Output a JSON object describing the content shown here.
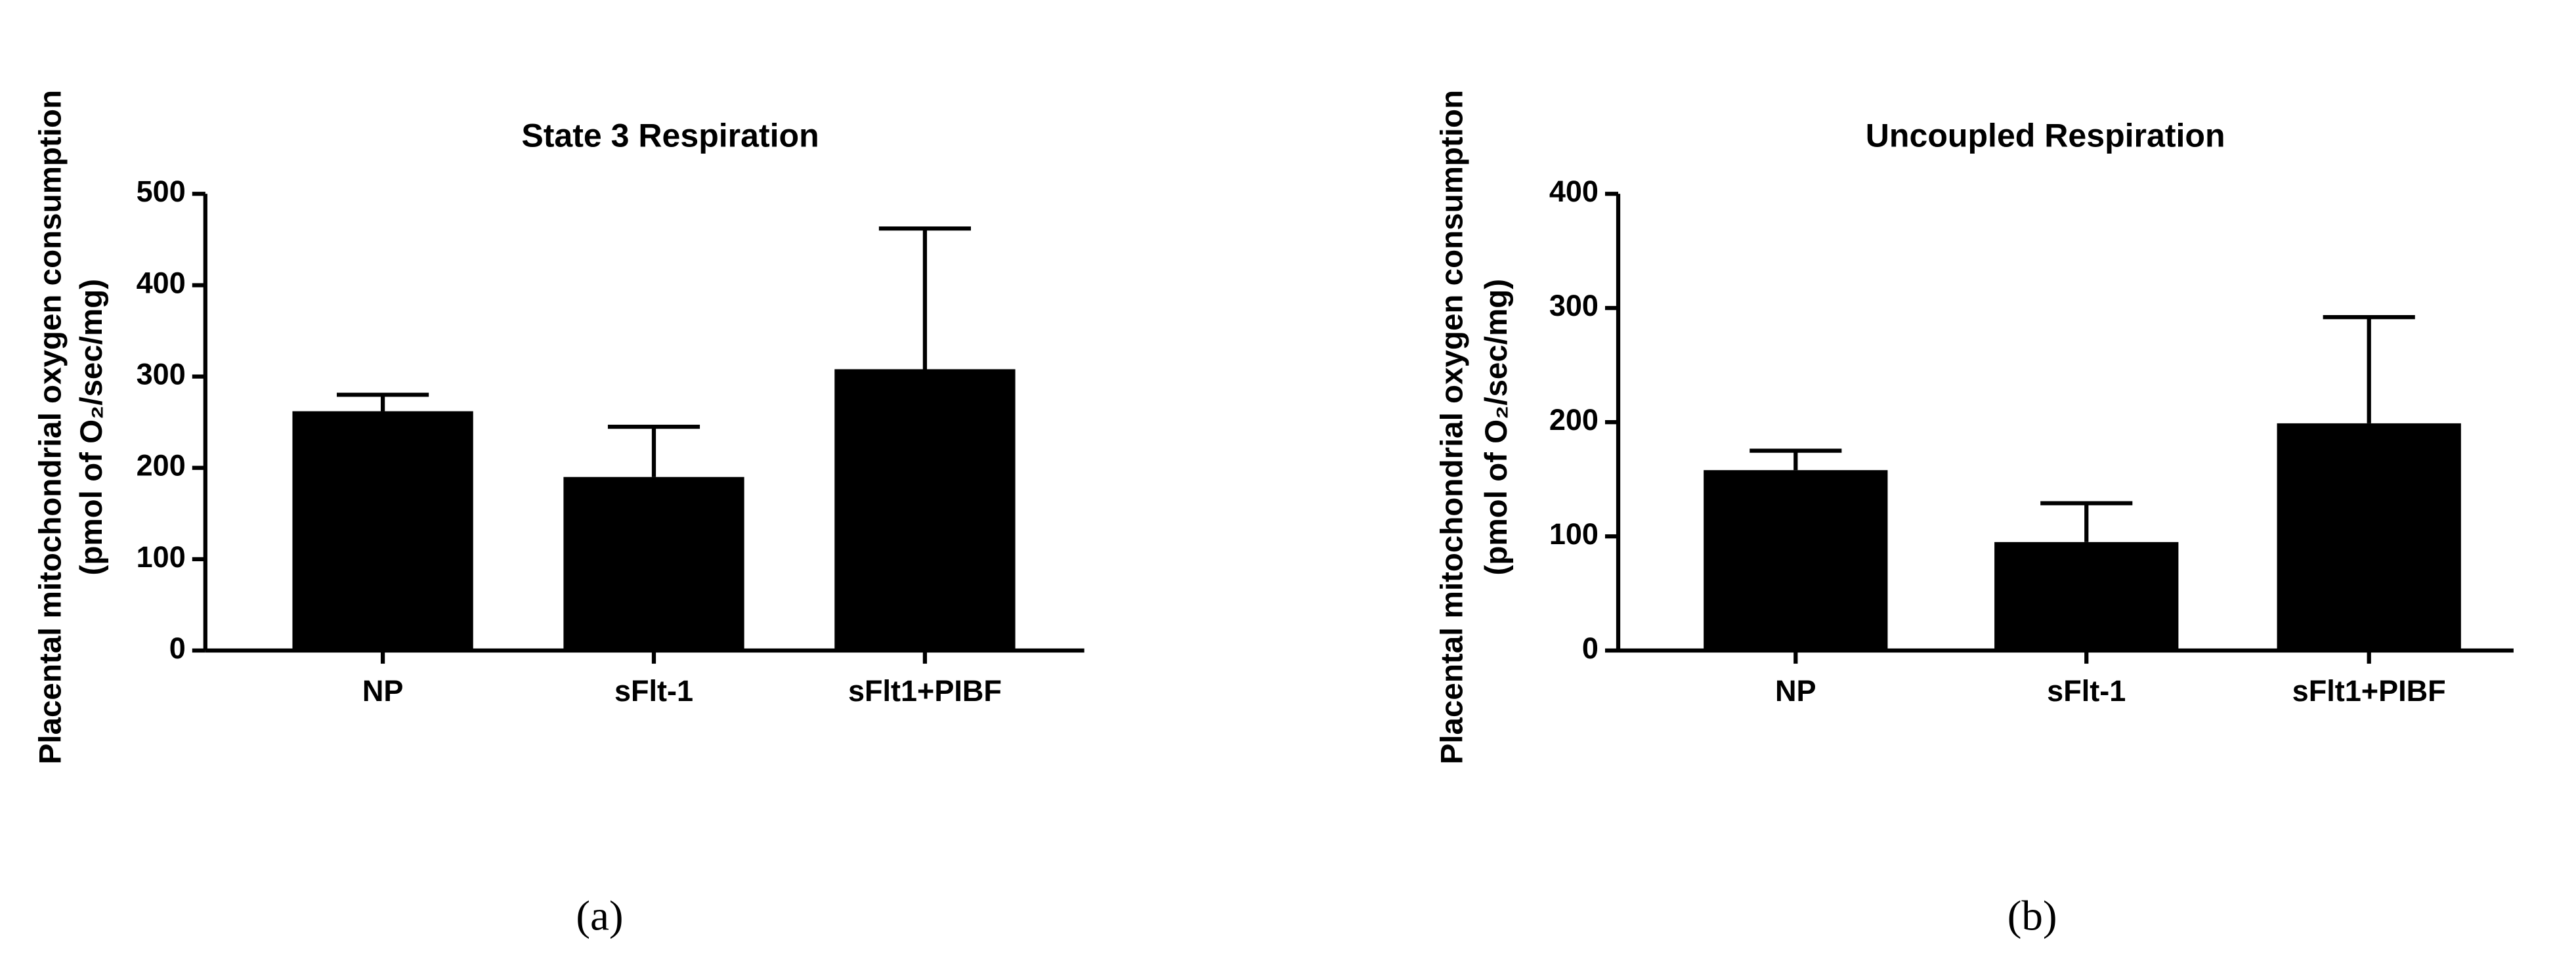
{
  "chart_data": [
    {
      "type": "bar",
      "title": "State 3 Respiration",
      "panel_label": "(a)",
      "y_label": [
        "Placental mitochondrial oxygen consumption",
        "(pmol of O₂/sec/mg)"
      ],
      "categories": [
        "NP",
        "sFlt-1",
        "sFlt1+PIBF"
      ],
      "values": [
        262,
        190,
        308
      ],
      "error": [
        18,
        55,
        154
      ],
      "color": "#000000",
      "ylim": [
        0,
        500
      ],
      "yticks": [
        0,
        100,
        200,
        300,
        400,
        500
      ]
    },
    {
      "type": "bar",
      "title": "Uncoupled Respiration",
      "panel_label": "(b)",
      "y_label": [
        "Placental mitochondrial oxygen consumption",
        "(pmol of O₂/sec/mg)"
      ],
      "categories": [
        "NP",
        "sFlt-1",
        "sFlt1+PIBF"
      ],
      "values": [
        158,
        95,
        199
      ],
      "error": [
        17,
        34,
        93
      ],
      "color": "#000000",
      "ylim": [
        0,
        400
      ],
      "yticks": [
        0,
        100,
        200,
        300,
        400
      ]
    }
  ]
}
